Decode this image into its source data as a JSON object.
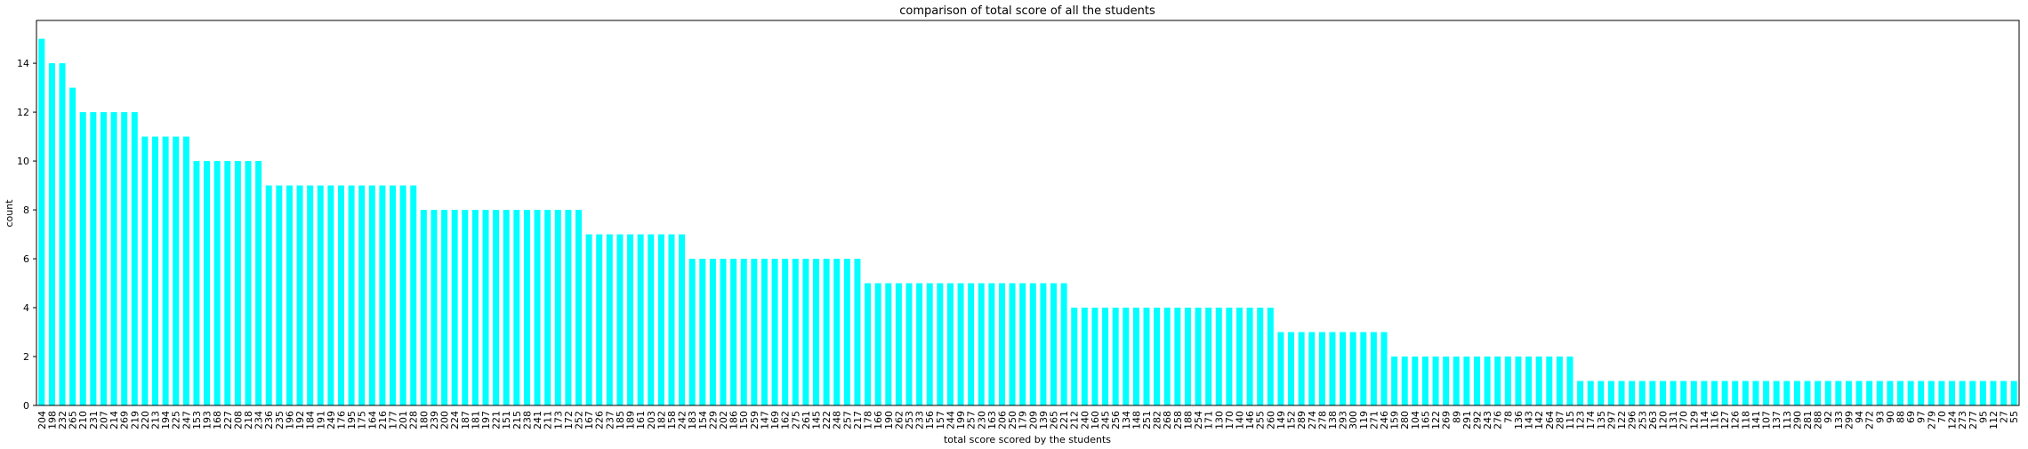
{
  "chart_data": {
    "type": "bar",
    "title": "comparison of total score of all the students",
    "xlabel": "total score scored by the students",
    "ylabel": "count",
    "color": "#00ffff",
    "categories": [
      "204",
      "198",
      "232",
      "265",
      "210",
      "231",
      "207",
      "214",
      "269",
      "219",
      "220",
      "213",
      "194",
      "225",
      "247",
      "153",
      "193",
      "168",
      "227",
      "208",
      "218",
      "234",
      "236",
      "235",
      "196",
      "192",
      "184",
      "191",
      "249",
      "176",
      "195",
      "175",
      "164",
      "216",
      "177",
      "201",
      "228",
      "180",
      "239",
      "200",
      "224",
      "187",
      "181",
      "197",
      "221",
      "151",
      "215",
      "238",
      "241",
      "211",
      "173",
      "172",
      "252",
      "167",
      "226",
      "237",
      "185",
      "189",
      "161",
      "203",
      "182",
      "158",
      "242",
      "183",
      "154",
      "229",
      "202",
      "186",
      "150",
      "259",
      "147",
      "169",
      "162",
      "275",
      "261",
      "145",
      "222",
      "248",
      "257",
      "217",
      "178",
      "166",
      "190",
      "262",
      "253",
      "233",
      "156",
      "157",
      "244",
      "199",
      "257",
      "230",
      "163",
      "206",
      "250",
      "179",
      "209",
      "139",
      "265",
      "221",
      "212",
      "240",
      "160",
      "245",
      "256",
      "134",
      "148",
      "251",
      "282",
      "268",
      "258",
      "188",
      "254",
      "171",
      "130",
      "170",
      "140",
      "146",
      "255",
      "260",
      "149",
      "152",
      "289",
      "274",
      "278",
      "138",
      "293",
      "300",
      "119",
      "271",
      "246",
      "159",
      "280",
      "104",
      "165",
      "122",
      "269",
      "89",
      "291",
      "292",
      "243",
      "276",
      "78",
      "136",
      "143",
      "142",
      "264",
      "287",
      "115",
      "123",
      "174",
      "135",
      "297",
      "122",
      "296",
      "253",
      "263",
      "120",
      "131",
      "270",
      "129",
      "114",
      "116",
      "127",
      "126",
      "118",
      "141",
      "107",
      "137",
      "113",
      "290",
      "281",
      "288",
      "92",
      "133",
      "299",
      "94",
      "272",
      "93",
      "90",
      "88",
      "69",
      "97",
      "279",
      "70",
      "124",
      "273",
      "277",
      "95",
      "112",
      "27",
      "55"
    ],
    "values": [
      15,
      14,
      14,
      13,
      12,
      12,
      12,
      12,
      12,
      12,
      11,
      11,
      11,
      11,
      11,
      10,
      10,
      10,
      10,
      10,
      10,
      10,
      9,
      9,
      9,
      9,
      9,
      9,
      9,
      9,
      9,
      9,
      9,
      9,
      9,
      9,
      9,
      8,
      8,
      8,
      8,
      8,
      8,
      8,
      8,
      8,
      8,
      8,
      8,
      8,
      8,
      8,
      8,
      7,
      7,
      7,
      7,
      7,
      7,
      7,
      7,
      7,
      7,
      6,
      6,
      6,
      6,
      6,
      6,
      6,
      6,
      6,
      6,
      6,
      6,
      6,
      6,
      6,
      6,
      6,
      5,
      5,
      5,
      5,
      5,
      5,
      5,
      5,
      5,
      5,
      5,
      5,
      5,
      5,
      5,
      5,
      5,
      5,
      5,
      5,
      4,
      4,
      4,
      4,
      4,
      4,
      4,
      4,
      4,
      4,
      4,
      4,
      4,
      4,
      4,
      4,
      4,
      4,
      4,
      4,
      3,
      3,
      3,
      3,
      3,
      3,
      3,
      3,
      3,
      3,
      3,
      2,
      2,
      2,
      2,
      2,
      2,
      2,
      2,
      2,
      2,
      2,
      2,
      2,
      2,
      2,
      2,
      2,
      2,
      1,
      1,
      1,
      1,
      1,
      1,
      1,
      1,
      1,
      1,
      1,
      1,
      1,
      1,
      1,
      1,
      1,
      1,
      1,
      1,
      1,
      1,
      1,
      1,
      1,
      1,
      1,
      1,
      1,
      1,
      1,
      1,
      1,
      1,
      1,
      1,
      1,
      1,
      1,
      1,
      1,
      1,
      1
    ],
    "ylim": [
      0,
      15.75
    ],
    "yticks": [
      0,
      2,
      4,
      6,
      8,
      10,
      12,
      14
    ],
    "grid": false
  }
}
